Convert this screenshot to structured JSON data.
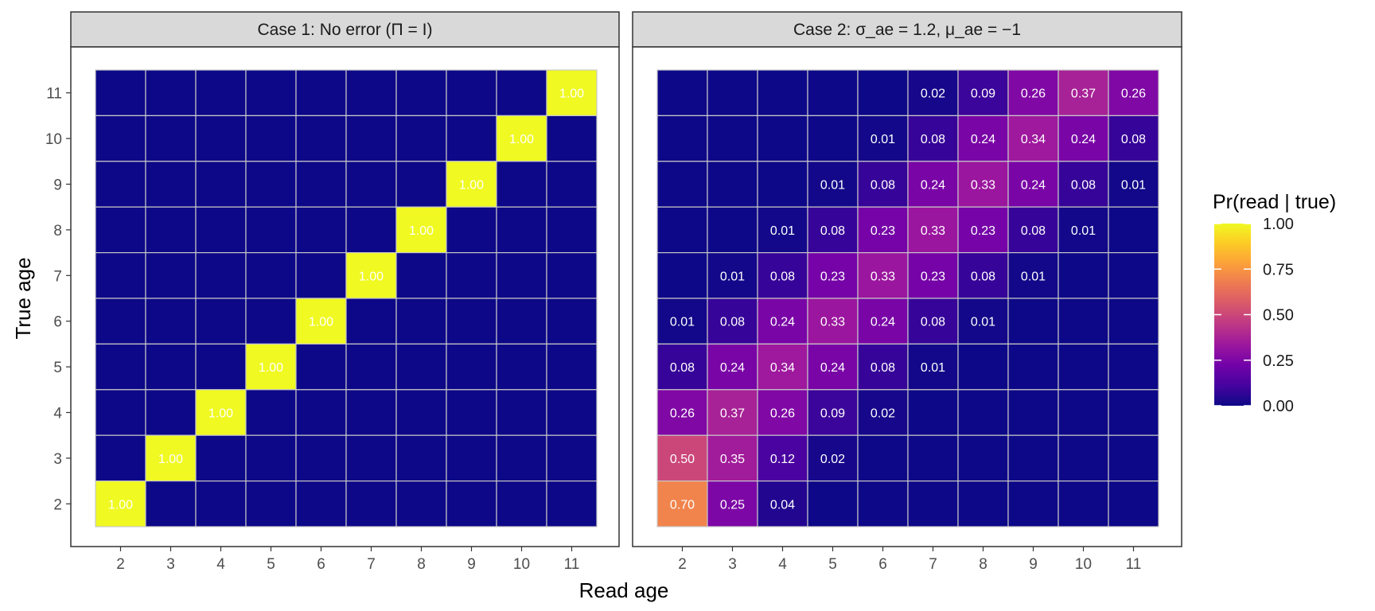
{
  "chart_data": {
    "type": "heatmap",
    "x_label": "Read age",
    "y_label": "True age",
    "x_ticks": [
      "2",
      "3",
      "4",
      "5",
      "6",
      "7",
      "8",
      "9",
      "10",
      "11"
    ],
    "y_ticks": [
      "2",
      "3",
      "4",
      "5",
      "6",
      "7",
      "8",
      "9",
      "10",
      "11"
    ],
    "legend": {
      "title": "Pr(read | true)",
      "ticks": [
        "0.00",
        "0.25",
        "0.50",
        "0.75",
        "1.00"
      ],
      "range": [
        0,
        1
      ],
      "colormap": "plasma",
      "placement": "right"
    },
    "colors": {
      "low": "#0d0887",
      "mid": "#cc4778",
      "high": "#f0f921",
      "grid": "#c8c8c8"
    },
    "panels": [
      {
        "strip": "Case 1: No error (Π = I)",
        "rows_top_to_bottom": [
          [
            "",
            "",
            "",
            "",
            "",
            "",
            "",
            "",
            "",
            "1.00"
          ],
          [
            "",
            "",
            "",
            "",
            "",
            "",
            "",
            "",
            "1.00",
            ""
          ],
          [
            "",
            "",
            "",
            "",
            "",
            "",
            "",
            "1.00",
            "",
            ""
          ],
          [
            "",
            "",
            "",
            "",
            "",
            "",
            "1.00",
            "",
            "",
            ""
          ],
          [
            "",
            "",
            "",
            "",
            "",
            "1.00",
            "",
            "",
            "",
            ""
          ],
          [
            "",
            "",
            "",
            "",
            "1.00",
            "",
            "",
            "",
            "",
            ""
          ],
          [
            "",
            "",
            "",
            "1.00",
            "",
            "",
            "",
            "",
            "",
            ""
          ],
          [
            "",
            "",
            "1.00",
            "",
            "",
            "",
            "",
            "",
            "",
            ""
          ],
          [
            "",
            "1.00",
            "",
            "",
            "",
            "",
            "",
            "",
            "",
            ""
          ],
          [
            "1.00",
            "",
            "",
            "",
            "",
            "",
            "",
            "",
            "",
            ""
          ]
        ]
      },
      {
        "strip": "Case 2: σ_ae = 1.2, μ_ae = −1",
        "rows_top_to_bottom": [
          [
            "",
            "",
            "",
            "",
            "",
            "0.02",
            "0.09",
            "0.26",
            "0.37",
            "0.26"
          ],
          [
            "",
            "",
            "",
            "",
            "0.01",
            "0.08",
            "0.24",
            "0.34",
            "0.24",
            "0.08"
          ],
          [
            "",
            "",
            "",
            "0.01",
            "0.08",
            "0.24",
            "0.33",
            "0.24",
            "0.08",
            "0.01"
          ],
          [
            "",
            "",
            "0.01",
            "0.08",
            "0.23",
            "0.33",
            "0.23",
            "0.08",
            "0.01",
            ""
          ],
          [
            "",
            "0.01",
            "0.08",
            "0.23",
            "0.33",
            "0.23",
            "0.08",
            "0.01",
            "",
            ""
          ],
          [
            "0.01",
            "0.08",
            "0.24",
            "0.33",
            "0.24",
            "0.08",
            "0.01",
            "",
            "",
            ""
          ],
          [
            "0.08",
            "0.24",
            "0.34",
            "0.24",
            "0.08",
            "0.01",
            "",
            "",
            "",
            ""
          ],
          [
            "0.26",
            "0.37",
            "0.26",
            "0.09",
            "0.02",
            "",
            "",
            "",
            "",
            ""
          ],
          [
            "0.50",
            "0.35",
            "0.12",
            "0.02",
            "",
            "",
            "",
            "",
            "",
            ""
          ],
          [
            "0.70",
            "0.25",
            "0.04",
            "",
            "",
            "",
            "",
            "",
            "",
            ""
          ]
        ]
      }
    ]
  }
}
